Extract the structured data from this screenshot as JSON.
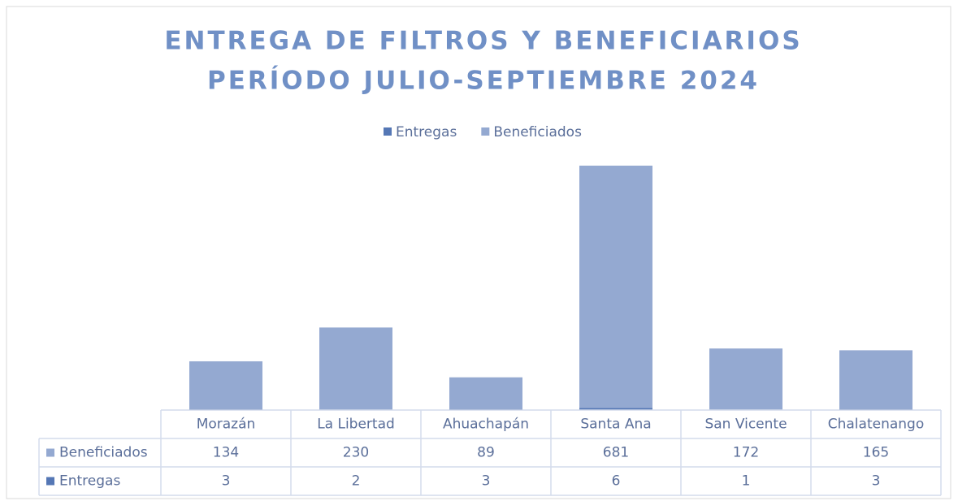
{
  "chart_data": {
    "type": "bar",
    "stacked": true,
    "title": [
      "ENTREGA DE FILTROS Y BENEFICIARIOS",
      "PERÍODO JULIO-SEPTIEMBRE 2024"
    ],
    "categories": [
      "Morazán",
      "La Libertad",
      "Ahuachapán",
      "Santa Ana",
      "San Vicente",
      "Chalatenango"
    ],
    "series": [
      {
        "name": "Entregas",
        "color": "#5577b5",
        "values": [
          3,
          2,
          3,
          6,
          1,
          3
        ]
      },
      {
        "name": "Beneficiados",
        "color": "#94a9d1",
        "values": [
          134,
          230,
          89,
          681,
          172,
          165
        ]
      }
    ],
    "legend": "top",
    "data_table": true
  }
}
